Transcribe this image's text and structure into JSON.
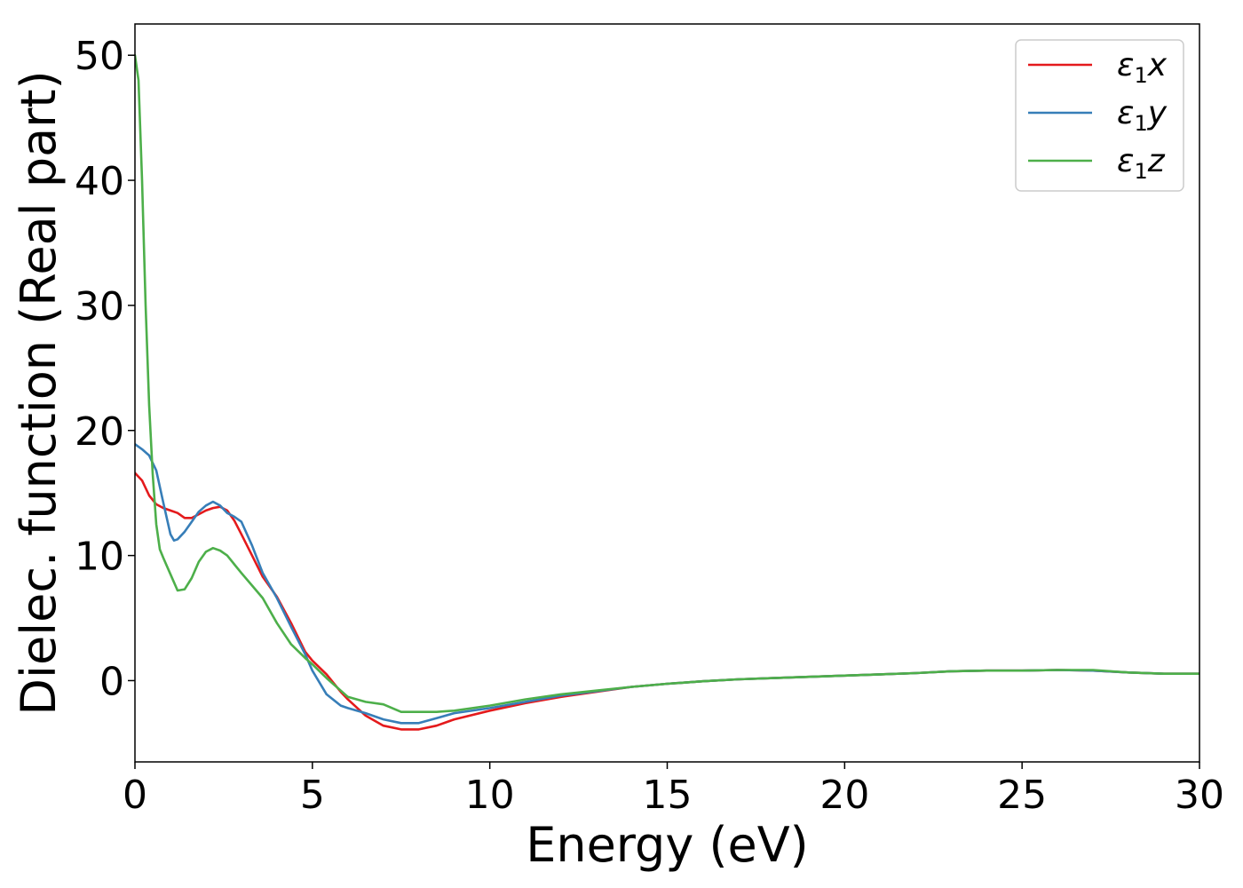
{
  "chart_data": {
    "type": "line",
    "xlabel": "Energy (eV)",
    "ylabel": "Dielec. function (Real part)",
    "xlim": [
      0,
      30
    ],
    "ylim": [
      -6.5,
      52.5
    ],
    "xticks": [
      0,
      5,
      10,
      15,
      20,
      25,
      30
    ],
    "yticks": [
      0,
      10,
      20,
      30,
      40,
      50
    ],
    "grid": false,
    "legend_position": "top-right",
    "series": [
      {
        "name": "ε1x",
        "legend_base": "ε",
        "legend_sub": "1",
        "legend_suffix": "x",
        "color": "#e41a1c",
        "x": [
          0,
          0.2,
          0.4,
          0.6,
          0.8,
          1.0,
          1.2,
          1.4,
          1.6,
          1.8,
          2.0,
          2.2,
          2.4,
          2.6,
          2.8,
          3.0,
          3.3,
          3.6,
          4.0,
          4.4,
          4.8,
          5.0,
          5.4,
          5.8,
          6.0,
          6.5,
          7.0,
          7.5,
          8.0,
          8.5,
          9.0,
          10,
          11,
          12,
          13,
          14,
          15,
          16,
          17,
          18,
          19,
          20,
          21,
          22,
          23,
          24,
          25,
          26,
          27,
          28,
          29,
          30
        ],
        "y": [
          16.6,
          16.0,
          14.8,
          14.1,
          13.8,
          13.6,
          13.4,
          13.0,
          13.0,
          13.3,
          13.6,
          13.8,
          13.9,
          13.6,
          12.8,
          11.7,
          10.0,
          8.3,
          6.7,
          4.6,
          2.3,
          1.6,
          0.5,
          -0.9,
          -1.5,
          -2.8,
          -3.6,
          -3.9,
          -3.9,
          -3.6,
          -3.1,
          -2.4,
          -1.8,
          -1.3,
          -0.9,
          -0.5,
          -0.25,
          -0.05,
          0.1,
          0.2,
          0.3,
          0.4,
          0.5,
          0.6,
          0.75,
          0.8,
          0.8,
          0.85,
          0.8,
          0.65,
          0.55,
          0.55
        ]
      },
      {
        "name": "ε1y",
        "legend_base": "ε",
        "legend_sub": "1",
        "legend_suffix": "y",
        "color": "#377eb8",
        "x": [
          0,
          0.2,
          0.4,
          0.6,
          0.8,
          1.0,
          1.1,
          1.2,
          1.4,
          1.6,
          1.8,
          2.0,
          2.2,
          2.4,
          2.6,
          2.8,
          3.0,
          3.3,
          3.6,
          4.0,
          4.4,
          4.8,
          5.0,
          5.4,
          5.8,
          6.0,
          6.5,
          7.0,
          7.5,
          8.0,
          8.5,
          9.0,
          10,
          11,
          12,
          13,
          14,
          15,
          16,
          17,
          18,
          19,
          20,
          21,
          22,
          23,
          24,
          25,
          26,
          27,
          28,
          29,
          30
        ],
        "y": [
          18.9,
          18.5,
          18.0,
          16.8,
          14.2,
          11.7,
          11.2,
          11.3,
          11.9,
          12.7,
          13.5,
          14.0,
          14.3,
          14.0,
          13.4,
          13.1,
          12.7,
          10.8,
          8.6,
          6.6,
          4.3,
          2.1,
          0.8,
          -1.1,
          -2.0,
          -2.2,
          -2.6,
          -3.1,
          -3.4,
          -3.4,
          -3.0,
          -2.6,
          -2.2,
          -1.7,
          -1.2,
          -0.85,
          -0.5,
          -0.25,
          -0.05,
          0.1,
          0.2,
          0.3,
          0.4,
          0.5,
          0.6,
          0.75,
          0.8,
          0.8,
          0.85,
          0.8,
          0.65,
          0.55,
          0.55
        ]
      },
      {
        "name": "ε1z",
        "legend_base": "ε",
        "legend_sub": "1",
        "legend_suffix": "z",
        "color": "#4daf4a",
        "x": [
          0,
          0.1,
          0.2,
          0.3,
          0.4,
          0.5,
          0.6,
          0.7,
          0.8,
          1.0,
          1.2,
          1.4,
          1.6,
          1.8,
          2.0,
          2.2,
          2.4,
          2.6,
          2.8,
          3.0,
          3.3,
          3.6,
          4.0,
          4.4,
          4.8,
          5.0,
          5.4,
          5.8,
          6.0,
          6.5,
          7.0,
          7.5,
          8.0,
          8.5,
          9.0,
          10,
          11,
          12,
          13,
          14,
          15,
          16,
          17,
          18,
          19,
          20,
          21,
          22,
          23,
          24,
          25,
          26,
          27,
          28,
          29,
          30
        ],
        "y": [
          50.0,
          48.0,
          40.0,
          30.0,
          22.0,
          16.5,
          12.5,
          10.5,
          9.8,
          8.5,
          7.2,
          7.3,
          8.2,
          9.5,
          10.3,
          10.6,
          10.4,
          10.0,
          9.3,
          8.6,
          7.6,
          6.6,
          4.6,
          2.9,
          1.8,
          1.3,
          0.2,
          -0.8,
          -1.3,
          -1.7,
          -1.9,
          -2.5,
          -2.5,
          -2.5,
          -2.4,
          -2.0,
          -1.5,
          -1.1,
          -0.8,
          -0.5,
          -0.25,
          -0.05,
          0.1,
          0.2,
          0.3,
          0.4,
          0.5,
          0.6,
          0.75,
          0.8,
          0.8,
          0.85,
          0.85,
          0.65,
          0.55,
          0.55
        ]
      }
    ]
  }
}
